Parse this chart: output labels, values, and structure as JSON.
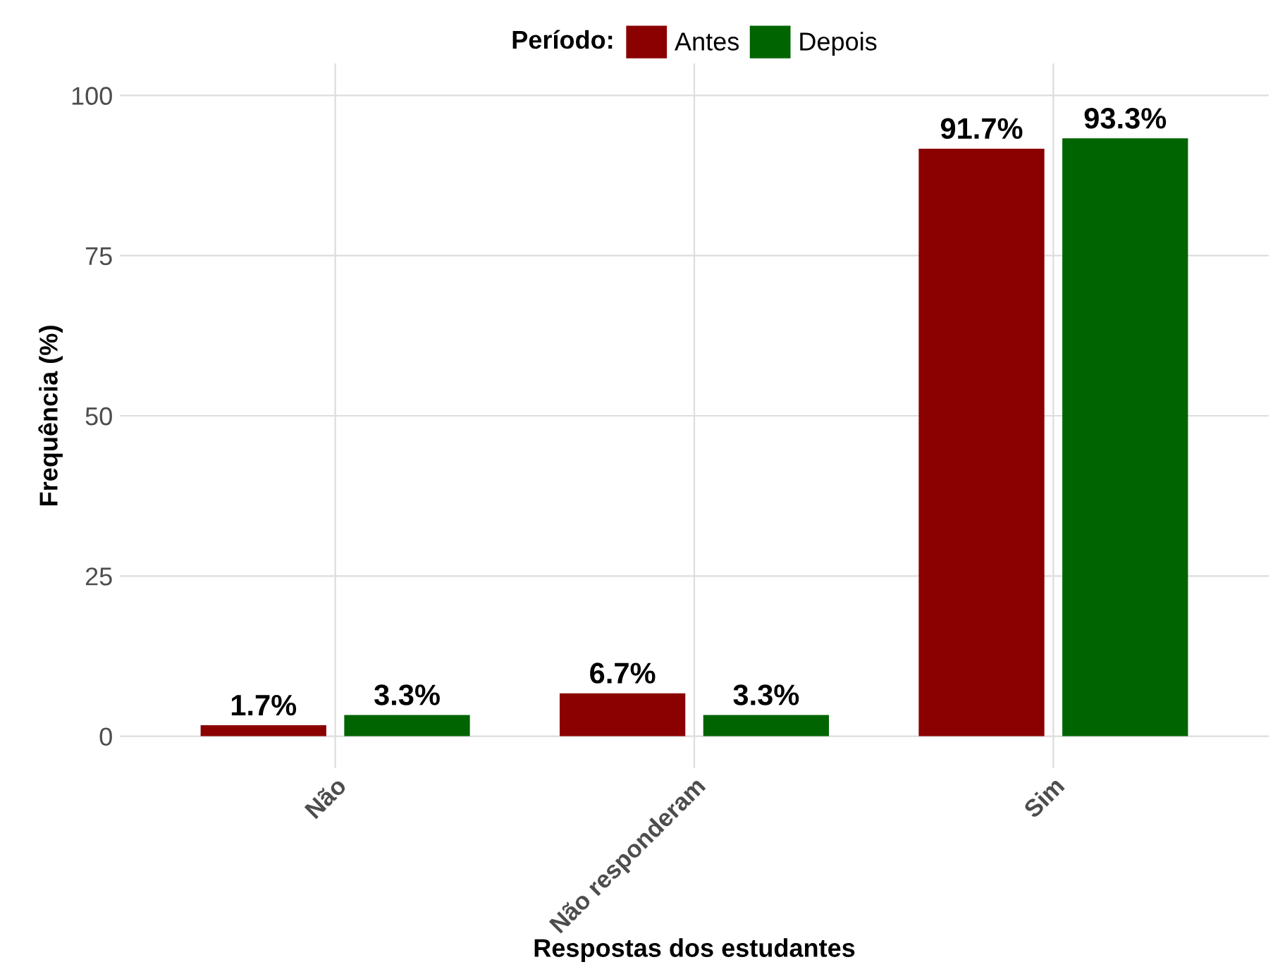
{
  "chart_data": {
    "type": "bar",
    "xlabel": "Respostas dos estudantes",
    "ylabel": "Frequência (%)",
    "legend_title": "Período:",
    "categories": [
      "Não",
      "Não responderam",
      "Sim"
    ],
    "series": [
      {
        "name": "Antes",
        "color": "#8b0000",
        "values": [
          1.7,
          6.7,
          91.7
        ],
        "value_labels": [
          "1.7%",
          "6.7%",
          "91.7%"
        ]
      },
      {
        "name": "Depois",
        "color": "#006400",
        "values": [
          3.3,
          3.3,
          93.3
        ],
        "value_labels": [
          "3.3%",
          "3.3%",
          "93.3%"
        ]
      }
    ],
    "ylim": [
      -5,
      105
    ],
    "yticks": [
      0,
      25,
      50,
      75,
      100
    ],
    "grid": true,
    "legend": "top"
  }
}
